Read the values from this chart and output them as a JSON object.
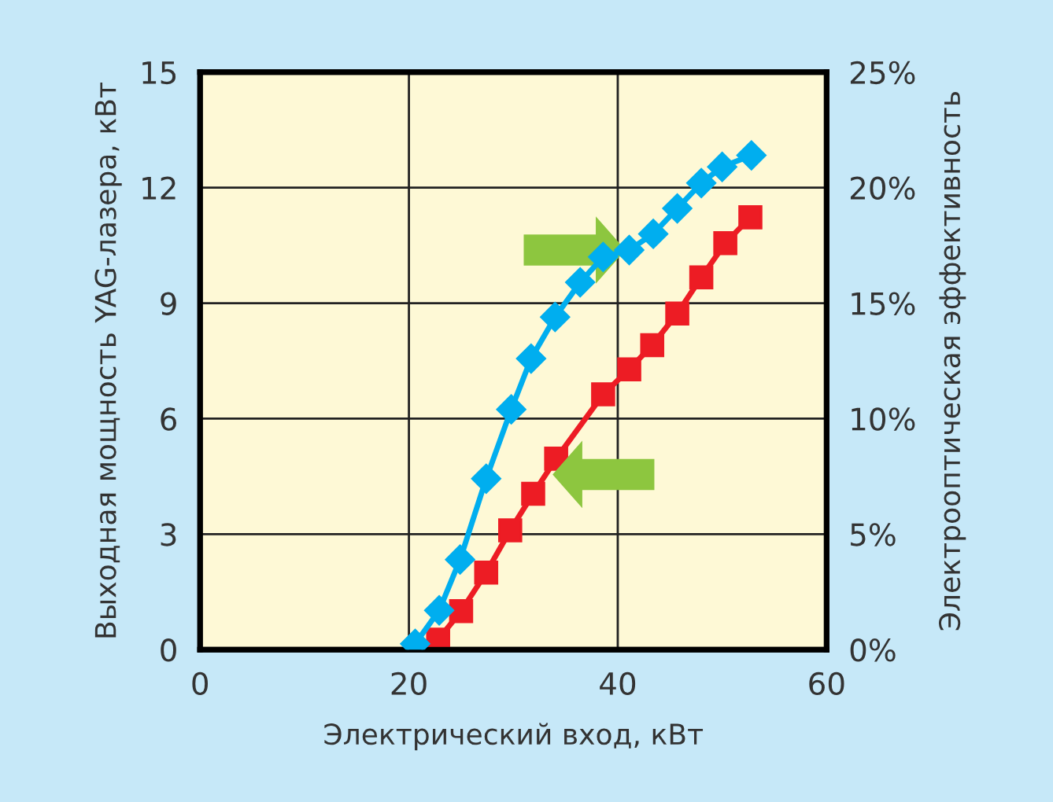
{
  "chart_data": {
    "type": "line",
    "xlabel": "Электрический вход, кВт",
    "ylabel": "Выходная мощность YAG-лазера, кВт",
    "y2label": "Электрооптическая эффективность",
    "xlim": [
      0,
      60
    ],
    "xticks": [
      0,
      20,
      40,
      60
    ],
    "ylim": [
      0,
      15
    ],
    "yticks": [
      0,
      3,
      6,
      9,
      12,
      15
    ],
    "y2lim": [
      0,
      25
    ],
    "y2ticks": [
      {
        "value": 0,
        "label": "0%"
      },
      {
        "value": 5,
        "label": "5%"
      },
      {
        "value": 10,
        "label": "10%"
      },
      {
        "value": 15,
        "label": "15%"
      },
      {
        "value": 20,
        "label": "20%"
      },
      {
        "value": 25,
        "label": "25%"
      }
    ],
    "grid": true,
    "line_style": "solid",
    "series": [
      {
        "color": "#ed1c24",
        "marker": "square",
        "axis": "y",
        "x": [
          22.8,
          25.0,
          27.4,
          29.7,
          31.9,
          34.1,
          38.6,
          41.1,
          43.3,
          45.7,
          48.0,
          50.3,
          52.7
        ],
        "values": [
          0.26,
          1.0,
          2.0,
          3.1,
          4.05,
          4.96,
          6.63,
          7.28,
          7.91,
          8.73,
          9.67,
          10.56,
          11.23
        ]
      },
      {
        "color": "#00aeef",
        "marker": "diamond",
        "axis": "y2",
        "x": [
          20.6,
          22.9,
          24.9,
          27.4,
          29.8,
          31.7,
          34.0,
          36.4,
          38.6,
          41.1,
          43.4,
          45.7,
          48.0,
          50.0,
          52.8
        ],
        "values": [
          0.25,
          1.7,
          3.9,
          7.4,
          10.4,
          12.6,
          14.4,
          15.9,
          17.0,
          17.3,
          18.0,
          19.1,
          20.2,
          20.9,
          21.4
        ]
      }
    ]
  }
}
